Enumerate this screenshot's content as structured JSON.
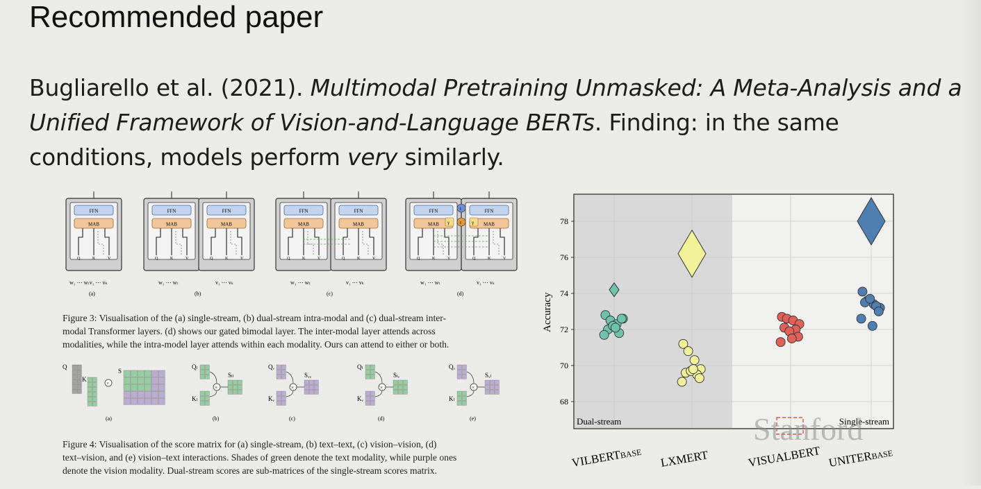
{
  "slide": {
    "title": "Recommended paper",
    "citation_authors": "Bugliarello et al. (2021). ",
    "citation_title_a": "Multimodal Pretraining Unmasked: A Meta-Analysis and a",
    "citation_title_b": "Unified Framework of Vision-and-Language BERTs",
    "finding_a": ". Finding: in the same",
    "finding_b": "conditions, models perform ",
    "finding_em": "very",
    "finding_c": " similarly.",
    "watermark": "Stanford"
  },
  "figure3": {
    "caption_lines": [
      "Figure 3: Visualisation of the (a) single-stream, (b) dual-stream intra-modal and (c) dual-stream inter-",
      "modal Transformer layers.  (d) shows our gated bimodal layer.  The inter-modal layer attends across",
      "modalities, while the intra-model layer attends within each modality. Ours can attend to either or both."
    ],
    "panels": [
      "(a)",
      "(b)",
      "(c)",
      "(d)"
    ],
    "ffn": "FFN",
    "mab": "MAB",
    "qkv": [
      "Q",
      "K",
      "V"
    ],
    "inputs": {
      "a": [
        "w₁ ⋯ wₜv₁ ⋯ vₖ"
      ],
      "b": [
        "w₁ ⋯ wₜ",
        "v₁ ⋯ vₖ"
      ],
      "c": [
        "w₁ ⋯ wₜ",
        "v₁ ⋯ vₖ"
      ],
      "d": [
        "w₁ ⋯ wₜ",
        "v₁ ⋯ vₖ"
      ]
    },
    "gates": [
      "τ",
      "γ"
    ]
  },
  "figure4": {
    "caption_lines": [
      "Figure 4:  Visualisation of the score matrix for (a) single-stream, (b) text–text, (c) vision–vision, (d)",
      "text–vision, and (e) vision–text interactions. Shades of green denote the text modality, while purple ones",
      "denote the vision modality. Dual-stream scores are sub-matrices of the single-stream scores matrix."
    ],
    "panels": [
      "(a)",
      "(b)",
      "(c)",
      "(d)",
      "(e)"
    ],
    "labels": {
      "a": [
        "Q",
        "K",
        "S"
      ],
      "b": [
        "Qₗ",
        "Kₗ",
        "Sₗₗ"
      ],
      "c": [
        "Qᵥ",
        "Kᵥ",
        "Sᵥᵥ"
      ],
      "d": [
        "Qₗ",
        "Kᵥ",
        "Sₗᵥ"
      ],
      "e": [
        "Qᵥ",
        "Kₗ",
        "Sᵥₗ"
      ]
    }
  },
  "colors": {
    "ffn": "#c4d4ee",
    "mab": "#f0c79a",
    "text_green": "#8fc99a",
    "vision_purple": "#b6a9cf",
    "dual_bg": "#d9d9d9",
    "vilbert": "#6fc3aa",
    "lxmert": "#f2f29a",
    "visualbert": "#e0605a",
    "uniter": "#4f7fb0"
  },
  "chart_data": {
    "type": "scatter",
    "ylabel": "Accuracy",
    "ylim": [
      66.5,
      79.5
    ],
    "yticks": [
      68,
      70,
      72,
      74,
      76,
      78
    ],
    "categories": [
      "VILBERT",
      "LXMERT",
      "VISUALBERT",
      "UNITER"
    ],
    "category_subscripts": [
      "BASE",
      "",
      "",
      "BASE"
    ],
    "region_labels": [
      "Dual-stream",
      "Single-stream"
    ],
    "grid": true,
    "series": [
      {
        "category": "VILBERT",
        "color": "#6fc3aa",
        "points": [
          72.8,
          72.5,
          72.3,
          72.6,
          72.0,
          71.8,
          72.2,
          72.6,
          71.7,
          72.1
        ],
        "diamond_mean": 74.2
      },
      {
        "category": "LXMERT",
        "color": "#f2f29a",
        "points": [
          71.2,
          70.8,
          70.3,
          69.8,
          69.6,
          69.5,
          69.7,
          69.3,
          69.1,
          69.8
        ],
        "diamond_mean": 76.2
      },
      {
        "category": "VISUALBERT",
        "color": "#e0605a",
        "points": [
          72.7,
          72.6,
          72.5,
          72.3,
          72.1,
          72.0,
          71.9,
          71.6,
          71.3,
          71.5
        ],
        "diamond_mean": null
      },
      {
        "category": "UNITER",
        "color": "#4f7fb0",
        "points": [
          74.1,
          73.6,
          73.4,
          73.2,
          73.5,
          73.3,
          73.7,
          73.0,
          72.6,
          72.2
        ],
        "diamond_mean": 78.0
      }
    ]
  }
}
